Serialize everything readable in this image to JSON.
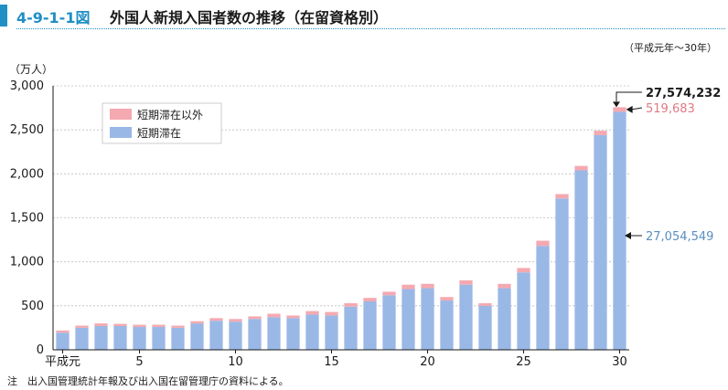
{
  "header": {
    "figure_number": "4-9-1-1図",
    "title": "外国人新規入国者数の推移（在留資格別）"
  },
  "period": "（平成元年～30年）",
  "unit": "（万人）",
  "note": "注　出入国管理統計年報及び出入国在留管理庁の資料による。",
  "colors": {
    "short_term": "#9ab8e6",
    "non_short_term": "#f4a9b1",
    "accent": "#1f8fc4"
  },
  "chart_data": {
    "type": "bar",
    "stacked": true,
    "title": "",
    "xlabel": "",
    "ylabel": "（万人）",
    "ylim": [
      0,
      3000
    ],
    "yticks": [
      "0",
      "500",
      "1,000",
      "1,500",
      "2,000",
      "2,500",
      "3,000"
    ],
    "categories": [
      "平成元",
      "2",
      "3",
      "4",
      "5",
      "6",
      "7",
      "8",
      "9",
      "10",
      "11",
      "12",
      "13",
      "14",
      "15",
      "16",
      "17",
      "18",
      "19",
      "20",
      "21",
      "22",
      "23",
      "24",
      "25",
      "26",
      "27",
      "28",
      "29",
      "30"
    ],
    "xtick_labels": [
      {
        "index": 0,
        "label": "平成元"
      },
      {
        "index": 4,
        "label": "5"
      },
      {
        "index": 9,
        "label": "10"
      },
      {
        "index": 14,
        "label": "15"
      },
      {
        "index": 19,
        "label": "20"
      },
      {
        "index": 24,
        "label": "25"
      },
      {
        "index": 29,
        "label": "30"
      }
    ],
    "legend": [
      "短期滞在以外",
      "短期滞在"
    ],
    "legend_position": "top-left",
    "series": [
      {
        "name": "短期滞在",
        "values": [
          195,
          250,
          270,
          270,
          260,
          260,
          250,
          300,
          330,
          320,
          350,
          370,
          360,
          400,
          390,
          490,
          550,
          620,
          690,
          700,
          560,
          740,
          500,
          700,
          880,
          1180,
          1720,
          2040,
          2440,
          2705
        ]
      },
      {
        "name": "短期滞在以外",
        "values": [
          25,
          25,
          30,
          25,
          25,
          25,
          25,
          25,
          30,
          30,
          30,
          40,
          30,
          40,
          40,
          40,
          40,
          40,
          50,
          50,
          40,
          50,
          30,
          50,
          50,
          60,
          50,
          50,
          50,
          52
        ]
      }
    ],
    "annotations": {
      "total": "27,574,232",
      "non_short_term": "519,683",
      "short_term": "27,054,549"
    }
  }
}
